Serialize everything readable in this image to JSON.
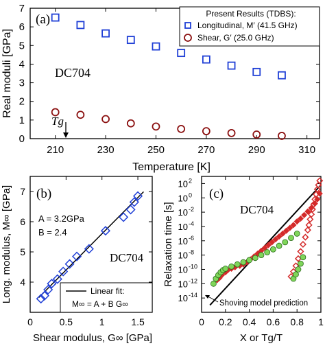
{
  "chart_data": [
    {
      "type": "scatter",
      "panel_label": "(a)",
      "annotation": "DC704",
      "tg_label": "Tg",
      "xlabel": "Temperature [K]",
      "ylabel": "Real moduli [GPa]",
      "xlim": [
        200,
        315
      ],
      "ylim": [
        0,
        7
      ],
      "xticks": [
        210,
        230,
        250,
        270,
        290,
        310
      ],
      "yticks": [
        0,
        1,
        2,
        3,
        4,
        5,
        6,
        7
      ],
      "legend_title": "Present Results (TDBS):",
      "legend_position": "top-right",
      "series": [
        {
          "name": "Longitudinal, M′ (41.5 GHz)",
          "marker": "square",
          "color": "#1f3fd6",
          "x": [
            210,
            220,
            230,
            240,
            250,
            260,
            270,
            280,
            290,
            300
          ],
          "y": [
            6.5,
            6.1,
            5.65,
            5.3,
            4.95,
            4.6,
            4.25,
            3.92,
            3.58,
            3.4
          ]
        },
        {
          "name": "Shear, G′ (25.0 GHz)",
          "marker": "circle",
          "color": "#8b1010",
          "x": [
            210,
            220,
            230,
            240,
            250,
            260,
            270,
            280,
            290,
            300
          ],
          "y": [
            1.42,
            1.28,
            1.05,
            0.82,
            0.65,
            0.52,
            0.4,
            0.3,
            0.22,
            0.15
          ]
        }
      ]
    },
    {
      "type": "scatter",
      "panel_label": "(b)",
      "annotation": "DC704",
      "fit_params": [
        "A = 3.2GPa",
        "B = 2.4"
      ],
      "xlabel": "Shear modulus, G∞ [GPa]",
      "ylabel": "Long. modulus, M∞ [GPa]",
      "xlim": [
        0,
        1.7
      ],
      "ylim": [
        3,
        7.5
      ],
      "xticks": [
        0,
        0.5,
        1,
        1.5
      ],
      "yticks": [
        4,
        5,
        6,
        7
      ],
      "legend_position": "bottom-right",
      "legend_line1": "Linear fit:",
      "legend_line2": "M∞ = A + B G∞",
      "fit": {
        "A": 3.2,
        "B": 2.4,
        "x_range": [
          0.12,
          1.58
        ]
      },
      "series": [
        {
          "name": "",
          "marker": "diamond",
          "color": "#1f3fd6",
          "x": [
            0.15,
            0.2,
            0.25,
            0.3,
            0.38,
            0.46,
            0.55,
            0.65,
            0.82,
            1.05,
            1.3,
            1.4,
            1.45,
            1.5
          ],
          "y": [
            3.45,
            3.55,
            3.75,
            3.95,
            4.1,
            4.35,
            4.6,
            4.85,
            5.1,
            5.7,
            6.15,
            6.4,
            6.65,
            6.85
          ]
        }
      ]
    },
    {
      "type": "scatter",
      "panel_label": "(c)",
      "annotation": "DC704",
      "shoving_label": "Shoving model prediction",
      "xlabel": "X or Tg/T",
      "ylabel": "Relaxation time [s]",
      "xlim": [
        0,
        1
      ],
      "ylim": [
        -16,
        3
      ],
      "yscale": "log",
      "xticks": [
        0,
        0.2,
        0.4,
        0.6,
        0.8,
        1
      ],
      "yticks_exp": [
        2,
        0,
        -2,
        -4,
        -6,
        -8,
        -10,
        -12,
        -14
      ],
      "shoving_line": {
        "x": [
          0.07,
          1.0
        ],
        "log10_y": [
          -15.0,
          1.8
        ]
      },
      "series": [
        {
          "name": "",
          "marker": "diamond",
          "color": "#d42a2a",
          "x": [
            0.13,
            0.15,
            0.17,
            0.2,
            0.22,
            0.25,
            0.28,
            0.32,
            0.35,
            0.38,
            0.41,
            0.44,
            0.47,
            0.5,
            0.53,
            0.56,
            0.59,
            0.62,
            0.65,
            0.68,
            0.71,
            0.74,
            0.77,
            0.8,
            0.83,
            0.86,
            0.89,
            0.92,
            0.95,
            0.97,
            0.99
          ],
          "log10_y": [
            -11.5,
            -11.2,
            -10.8,
            -10.4,
            -10.1,
            -9.9,
            -9.7,
            -9.5,
            -9.3,
            -9.0,
            -8.6,
            -8.2,
            -7.8,
            -7.4,
            -7.0,
            -6.6,
            -6.2,
            -5.8,
            -5.4,
            -5.0,
            -4.6,
            -4.2,
            -3.8,
            -3.3,
            -2.9,
            -2.4,
            -1.9,
            -1.4,
            -0.8,
            -0.2,
            0.6
          ]
        },
        {
          "name": "",
          "marker": "circle",
          "color": "#7fd65a",
          "x": [
            0.1,
            0.12,
            0.14,
            0.16,
            0.18,
            0.2,
            0.25,
            0.3,
            0.35,
            0.4,
            0.45,
            0.5,
            0.55,
            0.6,
            0.65,
            0.7,
            0.75,
            0.8
          ],
          "log10_y": [
            -12.0,
            -11.3,
            -10.8,
            -10.4,
            -10.1,
            -9.9,
            -9.6,
            -9.3,
            -9.0,
            -8.7,
            -8.4,
            -8.0,
            -7.6,
            -7.2,
            -6.7,
            -6.2,
            -5.6,
            -5.0
          ]
        },
        {
          "name": "",
          "marker": "diamond-open",
          "color": "#d42a2a",
          "x": [
            0.75,
            0.77,
            0.79,
            0.81,
            0.83,
            0.85,
            0.87,
            0.89,
            0.9,
            0.91,
            0.92,
            0.93,
            0.94,
            0.95,
            0.96,
            0.97,
            0.98,
            0.99
          ],
          "log10_y": [
            -11.0,
            -10.3,
            -9.5,
            -8.5,
            -7.5,
            -6.5,
            -5.5,
            -4.5,
            -3.8,
            -3.0,
            -2.3,
            -1.6,
            -0.9,
            -0.2,
            0.5,
            1.2,
            1.8,
            2.4
          ]
        },
        {
          "name": "",
          "marker": "circle",
          "color": "#7fd65a",
          "x": [
            0.77,
            0.79,
            0.81,
            0.83,
            0.85
          ],
          "log10_y": [
            -11.3,
            -10.7,
            -10.0,
            -9.2,
            -8.3
          ]
        }
      ]
    }
  ]
}
